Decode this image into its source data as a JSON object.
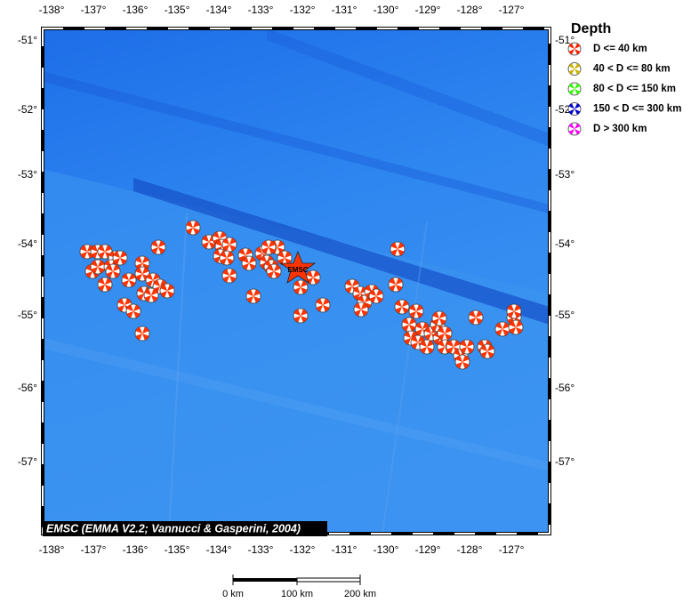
{
  "map": {
    "lon_labels": [
      "-138°",
      "-137°",
      "-136°",
      "-135°",
      "-134°",
      "-133°",
      "-132°",
      "-131°",
      "-130°",
      "-129°",
      "-128°",
      "-127°"
    ],
    "lat_labels": [
      "-51°",
      "-52°",
      "-53°",
      "-54°",
      "-55°",
      "-56°",
      "-57°"
    ],
    "epicenter_label": "EMSC",
    "credit": "EMSC (EMMA V2.2; Vannucci & Gasperini, 2004)"
  },
  "legend": {
    "title": "Depth",
    "items": [
      {
        "label": "D <= 40 km",
        "color": "#ff2200"
      },
      {
        "label": "40 < D <= 80 km",
        "color": "#c8b400"
      },
      {
        "label": "80 < D <= 150 km",
        "color": "#33ff00"
      },
      {
        "label": "150 < D <= 300 km",
        "color": "#0000cc"
      },
      {
        "label": "D > 300 km",
        "color": "#ff00ff"
      }
    ]
  },
  "scale_bar": {
    "labels": [
      "0 km",
      "100 km",
      "200 km"
    ]
  }
}
